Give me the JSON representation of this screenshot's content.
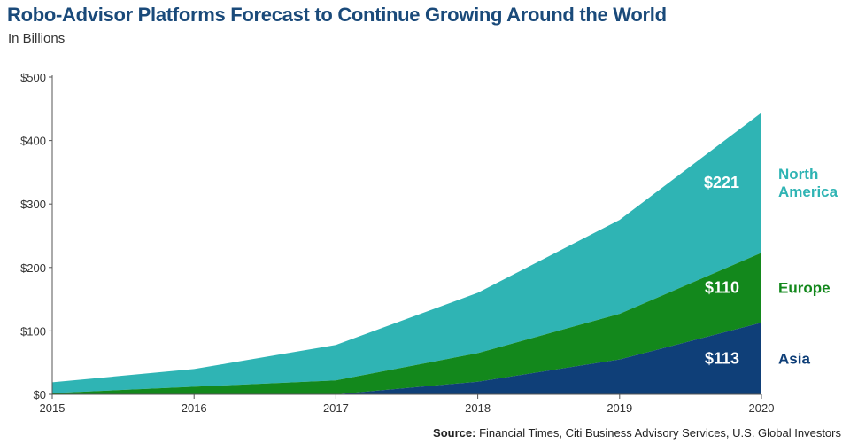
{
  "title": "Robo-Advisor Platforms Forecast to Continue Growing Around the World",
  "subtitle": "In Billions",
  "source": {
    "label": "Source:",
    "text": " Financial Times, Citi Business Advisory Services, U.S. Global Investors"
  },
  "chart_data": {
    "type": "area",
    "stacked": true,
    "x": [
      2015,
      2016,
      2017,
      2018,
      2019,
      2020
    ],
    "xlim": [
      2015,
      2020
    ],
    "ylim": [
      0,
      500
    ],
    "y_ticks": [
      {
        "value": 0,
        "label": "$0"
      },
      {
        "value": 100,
        "label": "$100"
      },
      {
        "value": 200,
        "label": "$200"
      },
      {
        "value": 300,
        "label": "$300"
      },
      {
        "value": 400,
        "label": "$400"
      },
      {
        "value": 500,
        "label": "$500"
      }
    ],
    "x_ticks": [
      "2015",
      "2016",
      "2017",
      "2018",
      "2019",
      "2020"
    ],
    "grid": false,
    "series": [
      {
        "name": "Asia",
        "color": "#0f3f78",
        "values": [
          0,
          0,
          0,
          20,
          55,
          113
        ],
        "end_label": "$113"
      },
      {
        "name": "Europe",
        "color": "#13881c",
        "values": [
          2,
          12,
          22,
          45,
          72,
          110
        ],
        "end_label": "$110"
      },
      {
        "name": "North America",
        "legend_lines": [
          "North",
          "America"
        ],
        "color": "#2fb4b4",
        "values": [
          17,
          28,
          56,
          95,
          148,
          221
        ],
        "end_label": "$221"
      }
    ]
  }
}
